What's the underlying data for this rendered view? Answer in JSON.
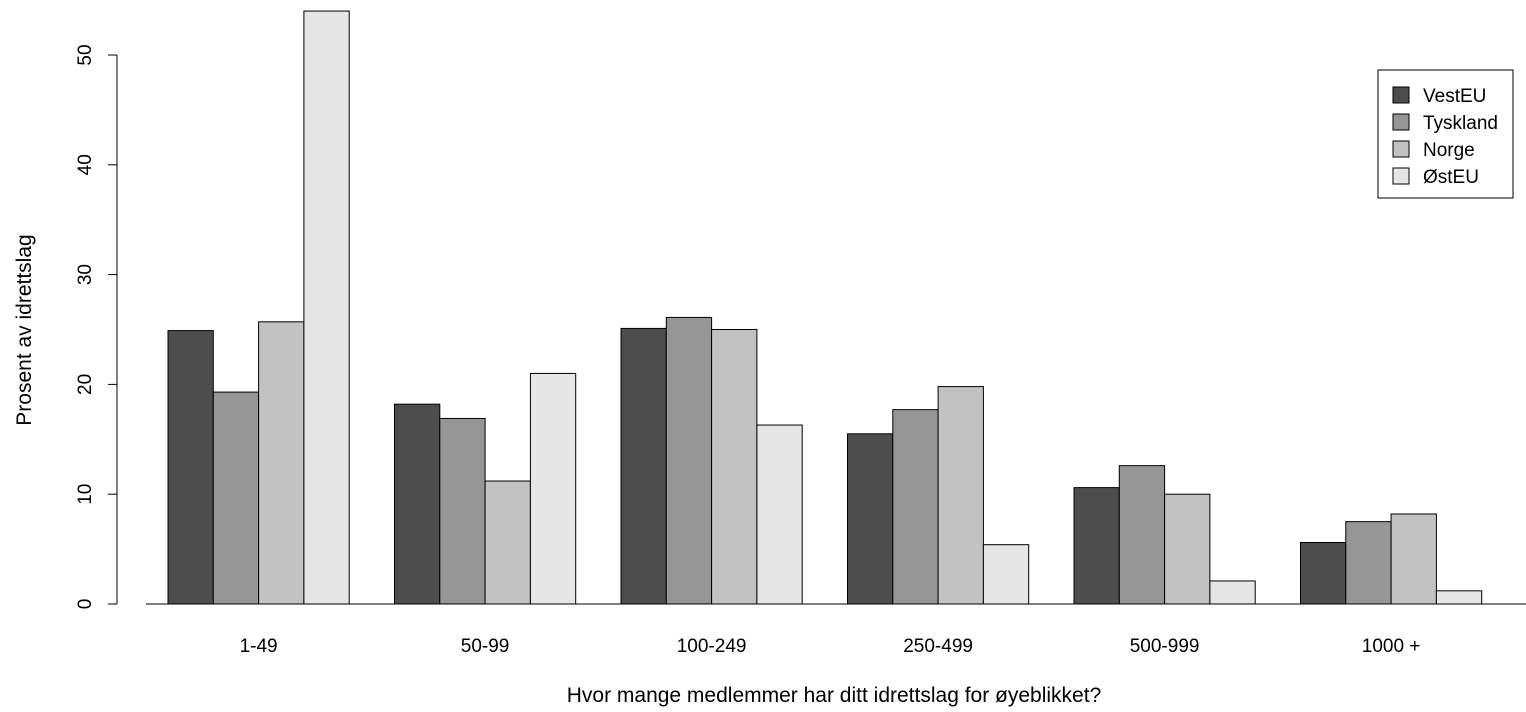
{
  "chart_data": {
    "type": "bar",
    "title": "",
    "xlabel": "Hvor mange medlemmer har ditt idrettslag for øyeblikket?",
    "ylabel": "Prosent av idrettslag",
    "ylim": [
      0,
      54
    ],
    "yticks": [
      0,
      10,
      20,
      30,
      40,
      50
    ],
    "grid": false,
    "legend_position": "top-right",
    "categories": [
      "1-49",
      "50-99",
      "100-249",
      "250-499",
      "500-999",
      "1000 +"
    ],
    "series": [
      {
        "name": "VestEU",
        "color": "#4d4d4d",
        "values": [
          24.9,
          18.2,
          25.1,
          15.5,
          10.6,
          5.6
        ]
      },
      {
        "name": "Tyskland",
        "color": "#969696",
        "values": [
          19.3,
          16.9,
          26.1,
          17.7,
          12.6,
          7.5
        ]
      },
      {
        "name": "Norge",
        "color": "#c2c2c2",
        "values": [
          25.7,
          11.2,
          25.0,
          19.8,
          10.0,
          8.2
        ]
      },
      {
        "name": "ØstEU",
        "color": "#e6e6e6",
        "values": [
          54.0,
          21.0,
          16.3,
          5.4,
          2.1,
          1.2
        ]
      }
    ]
  }
}
